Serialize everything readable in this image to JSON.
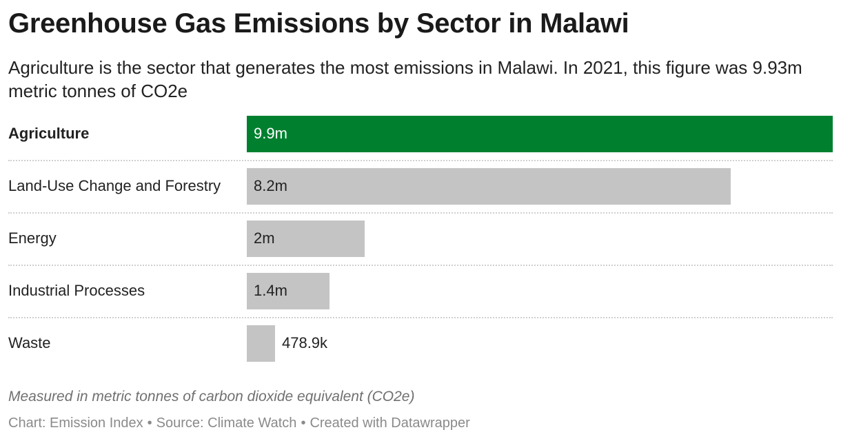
{
  "title": "Greenhouse Gas Emissions by Sector in Malawi",
  "subtitle": "Agriculture is the sector that generates the most emissions in Malawi. In 2021, this figure was 9.93m metric tonnes of CO2e",
  "notes": "Measured in metric tonnes of carbon dioxide equivalent (CO2e)",
  "byline": {
    "chart": "Chart: Emission Index",
    "source": "Source: Climate Watch",
    "created": "Created with Datawrapper",
    "separator": "•"
  },
  "colors": {
    "highlight": "#00802f",
    "default": "#c4c4c4",
    "label_on_highlight": "#ffffff",
    "label_default": "#222222"
  },
  "chart_data": {
    "type": "bar",
    "orientation": "horizontal",
    "categories": [
      "Agriculture",
      "Land-Use Change and Forestry",
      "Energy",
      "Industrial Processes",
      "Waste"
    ],
    "values": [
      9930000,
      8200000,
      2000000,
      1400000,
      478900
    ],
    "value_labels": [
      "9.9m",
      "8.2m",
      "2m",
      "1.4m",
      "478.9k"
    ],
    "highlight": [
      "Agriculture"
    ],
    "xlim": [
      0,
      9930000
    ],
    "grid": false,
    "legend": "none",
    "title": "Greenhouse Gas Emissions by Sector in Malawi"
  }
}
